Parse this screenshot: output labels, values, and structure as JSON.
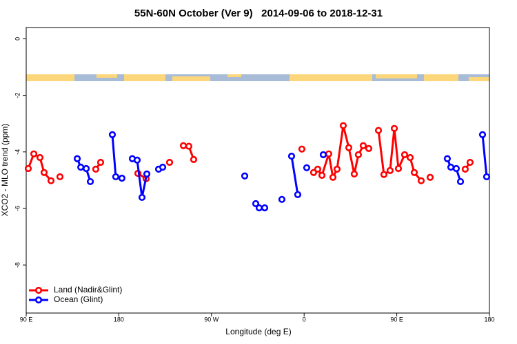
{
  "chart_data": {
    "type": "line",
    "title": "55N-60N October (Ver 9)   2014-09-06 to 2018-12-31",
    "x_label": "Longitude (deg E)",
    "y_label": "XCO2 - MLO trend (ppm)",
    "xlim": [
      90,
      540
    ],
    "ylim": [
      -9.7,
      0.4
    ],
    "xticks": [
      {
        "value": 90,
        "label": "90 E"
      },
      180,
      {
        "value": 270,
        "label": "90 W"
      },
      {
        "value": 360,
        "label": "0"
      },
      {
        "value": 450,
        "label": "90 E"
      },
      {
        "value": 540,
        "label": "180"
      }
    ],
    "yticks": [
      0,
      -2,
      -4,
      -6,
      -8
    ],
    "legend": "bottomleft",
    "series": [
      {
        "name": "Land (Nadir&Glint)",
        "color": "#ff0000",
        "x": [
          92.0,
          97.4,
          103.4,
          107.4,
          114.1,
          null,
          122.8,
          null,
          157.6,
          162.3,
          null,
          198.5,
          206.5,
          null,
          229.3,
          null,
          242.7,
          248.0,
          252.7,
          null,
          357.8,
          null,
          369.2,
          373.2,
          377.3,
          383.9,
          388.0,
          392.0,
          398.0,
          403.4,
          408.7,
          412.7,
          417.4,
          422.8,
          null,
          432.2,
          437.5,
          443.5,
          447.6,
          451.6,
          457.6,
          463.0,
          467.0,
          473.7,
          null,
          482.4,
          null,
          516.5,
          521.2
        ],
        "values": [
          -4.59,
          -4.07,
          -4.2,
          -4.73,
          -5.02,
          null,
          -4.88,
          null,
          -4.61,
          -4.37,
          null,
          -4.76,
          -4.95,
          null,
          -4.37,
          null,
          -3.78,
          -3.8,
          -4.27,
          null,
          -3.9,
          null,
          -4.73,
          -4.61,
          -4.83,
          -4.07,
          -4.9,
          -4.61,
          -3.07,
          -3.85,
          -4.78,
          -4.1,
          -3.78,
          -3.88,
          null,
          -3.24,
          -4.8,
          -4.66,
          -3.17,
          -4.59,
          -4.1,
          -4.2,
          -4.73,
          -5.02,
          null,
          -4.9,
          null,
          -4.61,
          -4.37
        ]
      },
      {
        "name": "Ocean (Glint)",
        "color": "#0000ff",
        "x": [
          139.6,
          143.0,
          148.3,
          152.3,
          null,
          173.7,
          177.0,
          183.0,
          null,
          193.1,
          197.8,
          202.5,
          207.2,
          null,
          218.6,
          222.6,
          null,
          302.3,
          null,
          313.0,
          316.3,
          321.7,
          null,
          338.4,
          null,
          347.8,
          353.8,
          null,
          362.5,
          null,
          378.6,
          null,
          499.1,
          502.5,
          507.8,
          511.9,
          null,
          533.3,
          537.3
        ],
        "values": [
          -4.24,
          -4.54,
          -4.59,
          -5.05,
          null,
          -3.39,
          -4.88,
          -4.93,
          null,
          -4.24,
          -4.29,
          -5.61,
          -4.78,
          null,
          -4.61,
          -4.54,
          null,
          -4.85,
          null,
          -5.83,
          -5.98,
          -5.98,
          null,
          -5.68,
          null,
          -4.15,
          -5.51,
          null,
          -4.56,
          null,
          -4.1,
          null,
          -4.24,
          -4.54,
          -4.59,
          -5.05,
          null,
          -3.39,
          -4.88
        ]
      }
    ]
  }
}
